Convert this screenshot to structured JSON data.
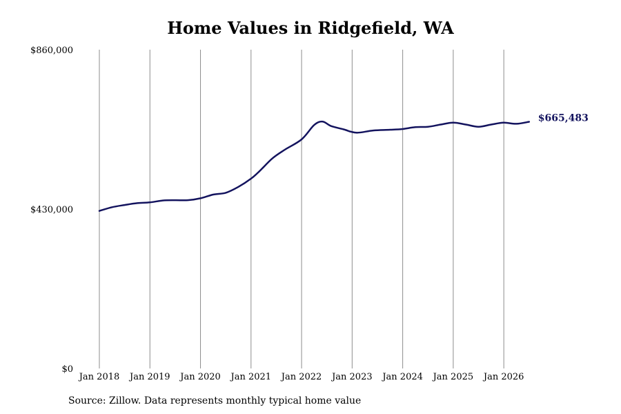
{
  "chart_data": {
    "type": "line",
    "title": "Home Values in Ridgefield, WA",
    "xlabel": "",
    "ylabel": "",
    "ylim": [
      0,
      860000
    ],
    "xlim": [
      "2018-01",
      "2026-09"
    ],
    "y_ticks": [
      {
        "value": 0,
        "label": "$0"
      },
      {
        "value": 430000,
        "label": "$430,000"
      },
      {
        "value": 860000,
        "label": "$860,000"
      }
    ],
    "x_ticks": [
      {
        "value": "2018-01",
        "label": "Jan 2018"
      },
      {
        "value": "2019-01",
        "label": "Jan 2019"
      },
      {
        "value": "2020-01",
        "label": "Jan 2020"
      },
      {
        "value": "2021-01",
        "label": "Jan 2021"
      },
      {
        "value": "2022-01",
        "label": "Jan 2022"
      },
      {
        "value": "2023-01",
        "label": "Jan 2023"
      },
      {
        "value": "2024-01",
        "label": "Jan 2024"
      },
      {
        "value": "2025-01",
        "label": "Jan 2025"
      },
      {
        "value": "2026-01",
        "label": "Jan 2026"
      }
    ],
    "grid": "vertical",
    "line_color": "#13135e",
    "end_label": "$665,483",
    "series": [
      {
        "x": [
          "2018-01",
          "2018-04",
          "2018-07",
          "2018-10",
          "2019-01",
          "2019-04",
          "2019-07",
          "2019-10",
          "2020-01",
          "2020-04",
          "2020-07",
          "2020-10",
          "2021-01",
          "2021-03",
          "2021-06",
          "2021-09",
          "2022-01",
          "2022-04",
          "2022-06",
          "2022-08",
          "2022-11",
          "2023-02",
          "2023-06",
          "2023-10",
          "2024-01",
          "2024-04",
          "2024-07",
          "2024-10",
          "2025-01",
          "2025-04",
          "2025-07",
          "2025-10",
          "2026-01",
          "2026-04",
          "2026-07"
        ],
        "values": [
          425000,
          435000,
          441000,
          446000,
          448000,
          453000,
          454000,
          454000,
          459000,
          469000,
          474000,
          490000,
          512000,
          532000,
          566000,
          590000,
          618000,
          657000,
          666000,
          654000,
          645000,
          636000,
          642000,
          644000,
          646000,
          651000,
          652000,
          658000,
          663000,
          658000,
          652000,
          658000,
          663000,
          660000,
          665483
        ]
      }
    ]
  },
  "source": "Source: Zillow. Data represents monthly typical home value"
}
